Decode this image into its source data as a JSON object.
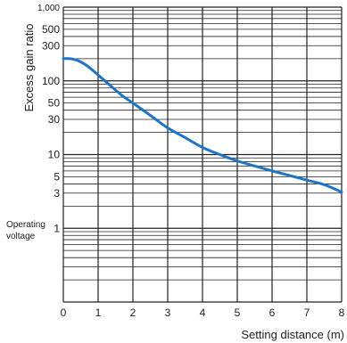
{
  "chart_data": {
    "type": "line",
    "xlabel": "Setting distance (m)",
    "ylabel": "Excess gain ratio",
    "y_scale": "log",
    "xlim": [
      0,
      8
    ],
    "ylim": [
      0.1,
      1000
    ],
    "x_ticks": [
      "0",
      "1",
      "2",
      "3",
      "4",
      "5",
      "6",
      "7",
      "8"
    ],
    "y_ticks": [
      {
        "value": 1000,
        "label": "1,000"
      },
      {
        "value": 500,
        "label": "500"
      },
      {
        "value": 300,
        "label": "300"
      },
      {
        "value": 100,
        "label": "100"
      },
      {
        "value": 50,
        "label": "50"
      },
      {
        "value": 30,
        "label": "30"
      },
      {
        "value": 10,
        "label": "10"
      },
      {
        "value": 5,
        "label": "5"
      },
      {
        "value": 3,
        "label": "3"
      },
      {
        "value": 1,
        "label": "1"
      }
    ],
    "annotation": {
      "line1": "Operating",
      "line2": "voltage",
      "value": 1
    },
    "grid": true,
    "line_color": "#1f74c6",
    "series": [
      {
        "x": [
          0,
          0.2,
          0.4,
          0.6,
          0.8,
          1.0,
          1.25,
          1.5,
          1.75,
          2.0,
          2.5,
          3.0,
          3.5,
          4.0,
          4.5,
          5.0,
          5.5,
          6.0,
          6.5,
          7.0,
          7.5,
          8.0
        ],
        "y": [
          200,
          200,
          190,
          170,
          145,
          120,
          95,
          75,
          60,
          50,
          34,
          23,
          17,
          12.5,
          10,
          8.2,
          7,
          6,
          5.2,
          4.5,
          3.9,
          3.1
        ]
      }
    ]
  }
}
